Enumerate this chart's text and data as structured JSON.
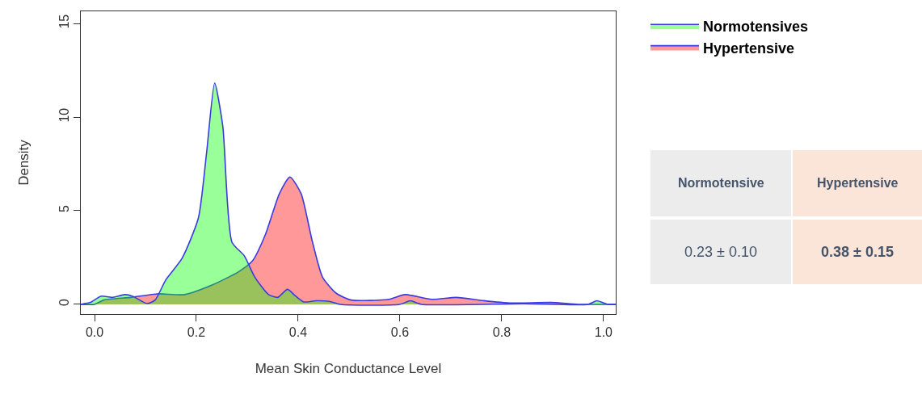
{
  "chart_data": {
    "type": "area",
    "xlabel": "Mean Skin Conductance Level",
    "ylabel": "Density",
    "xlim": [
      -0.027,
      1.024
    ],
    "ylim": [
      -0.52,
      15.65
    ],
    "xticks": [
      {
        "value": 0,
        "label": "0.0"
      },
      {
        "value": 0.2,
        "label": "0.2"
      },
      {
        "value": 0.4,
        "label": "0.4"
      },
      {
        "value": 0.6,
        "label": "0.6"
      },
      {
        "value": 0.8,
        "label": "0.8"
      },
      {
        "value": 1,
        "label": "1.0"
      }
    ],
    "yticks": [
      0,
      5,
      10,
      15
    ],
    "legend": "top right",
    "series": [
      {
        "name": "Hypertensive",
        "color": "#ff0000",
        "x": [
          -0.027,
          0.0,
          0.018,
          0.071,
          0.124,
          0.177,
          0.23,
          0.283,
          0.31,
          0.336,
          0.363,
          0.384,
          0.406,
          0.427,
          0.448,
          0.475,
          0.504,
          0.578,
          0.61,
          0.663,
          0.711,
          0.764,
          0.817,
          0.897,
          0.95,
          1.008,
          1.024
        ],
        "values": [
          0,
          0,
          0.23,
          0.37,
          0.56,
          0.52,
          1.02,
          1.74,
          2.31,
          3.75,
          5.9,
          6.8,
          5.9,
          3.46,
          1.45,
          0.59,
          0.23,
          0.27,
          0.52,
          0.27,
          0.37,
          0.2,
          0.07,
          0.1,
          0,
          0,
          0
        ]
      },
      {
        "name": "Normotensives",
        "color": "#00ff00",
        "x": [
          -0.027,
          -0.008,
          0.013,
          0.034,
          0.06,
          0.076,
          0.103,
          0.119,
          0.14,
          0.172,
          0.204,
          0.22,
          0.236,
          0.252,
          0.27,
          0.294,
          0.315,
          0.342,
          0.36,
          0.379,
          0.395,
          0.411,
          0.435,
          0.461,
          0.482,
          0.6,
          0.62,
          0.642,
          0.843,
          0.97,
          0.987,
          1.008,
          1.024
        ],
        "values": [
          0,
          0.1,
          0.44,
          0.37,
          0.52,
          0.42,
          0.04,
          0.23,
          1.31,
          2.46,
          4.61,
          8.06,
          11.82,
          9.5,
          3.32,
          2.6,
          1.45,
          0.52,
          0.37,
          0.8,
          0.44,
          0.13,
          0.19,
          0.16,
          0,
          0,
          0.19,
          0,
          0.03,
          0,
          0.19,
          0,
          0
        ]
      }
    ],
    "annotations": [
      "Normotensive",
      "Hypertensive",
      "0.23 ± 0.10",
      "0.38 ± 0.15"
    ]
  }
}
